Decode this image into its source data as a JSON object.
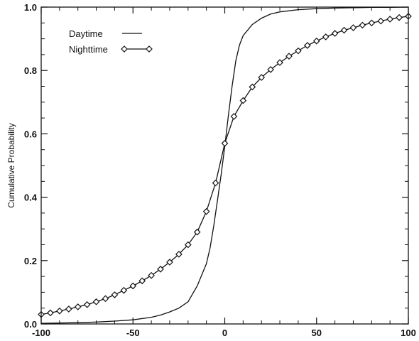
{
  "chart_data": {
    "type": "line",
    "ylabel": "Cumulative Probability",
    "xlabel": "",
    "xlim": [
      -100,
      100
    ],
    "ylim": [
      0.0,
      1.0
    ],
    "x_ticks": [
      -100,
      -50,
      0,
      50,
      100
    ],
    "y_ticks": [
      0.0,
      0.2,
      0.4,
      0.6,
      0.8,
      1.0
    ],
    "x_tick_labels": [
      "-100",
      "-50",
      "0",
      "50",
      "100"
    ],
    "y_tick_labels": [
      "0.0",
      "0.2",
      "0.4",
      "0.6",
      "0.8",
      "1.0"
    ],
    "grid": false,
    "legend_position": "top-left",
    "series": [
      {
        "name": "Daytime",
        "marker": "none",
        "x": [
          -100,
          -90,
          -80,
          -70,
          -60,
          -50,
          -40,
          -35,
          -30,
          -25,
          -20,
          -15,
          -10,
          -8,
          -6,
          -4,
          -2,
          0,
          2,
          4,
          6,
          8,
          10,
          15,
          20,
          25,
          30,
          40,
          50,
          60,
          70,
          80,
          90,
          100
        ],
        "y": [
          0.002,
          0.003,
          0.004,
          0.006,
          0.009,
          0.013,
          0.021,
          0.028,
          0.038,
          0.05,
          0.07,
          0.12,
          0.19,
          0.24,
          0.31,
          0.39,
          0.47,
          0.56,
          0.66,
          0.75,
          0.83,
          0.88,
          0.91,
          0.945,
          0.965,
          0.978,
          0.985,
          0.992,
          0.995,
          0.997,
          0.998,
          0.999,
          0.999,
          1.0
        ]
      },
      {
        "name": "Nighttime",
        "marker": "diamond",
        "x": [
          -100,
          -95,
          -90,
          -85,
          -80,
          -75,
          -70,
          -65,
          -60,
          -55,
          -50,
          -45,
          -40,
          -35,
          -30,
          -25,
          -20,
          -15,
          -10,
          -5,
          0,
          5,
          10,
          15,
          20,
          25,
          30,
          35,
          40,
          45,
          50,
          55,
          60,
          65,
          70,
          75,
          80,
          85,
          90,
          95,
          100
        ],
        "y": [
          0.03,
          0.035,
          0.041,
          0.047,
          0.054,
          0.061,
          0.07,
          0.08,
          0.092,
          0.106,
          0.12,
          0.136,
          0.153,
          0.173,
          0.195,
          0.22,
          0.25,
          0.29,
          0.355,
          0.445,
          0.57,
          0.655,
          0.705,
          0.748,
          0.778,
          0.803,
          0.825,
          0.845,
          0.862,
          0.879,
          0.893,
          0.906,
          0.917,
          0.927,
          0.935,
          0.943,
          0.95,
          0.956,
          0.962,
          0.967,
          0.971
        ]
      }
    ]
  }
}
